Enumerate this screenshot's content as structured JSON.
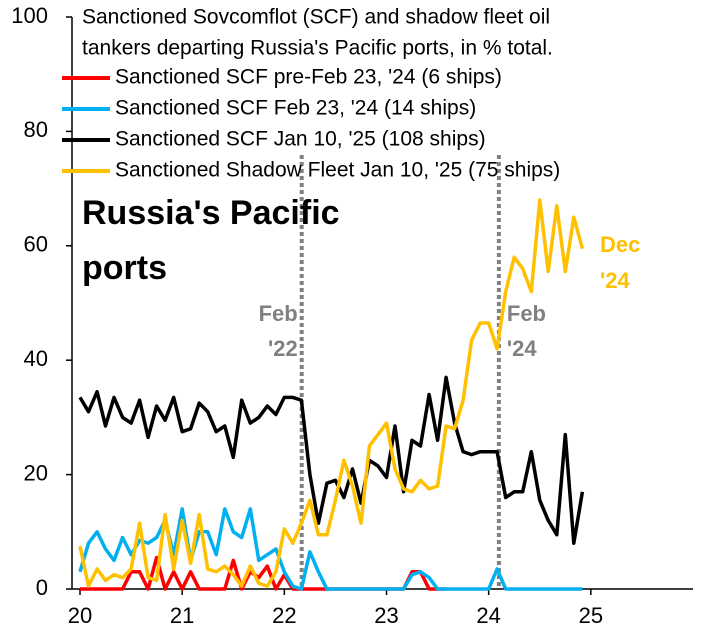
{
  "chart_data": {
    "type": "line",
    "title_lines": [
      "Sanctioned Sovcomflot (SCF) and shadow fleet oil",
      "tankers departing Russia's Pacific ports, in % total."
    ],
    "annotation_lines": [
      "Russia's Pacific",
      "ports"
    ],
    "events": [
      {
        "x": 22.17,
        "lines": [
          "Feb",
          "'22"
        ],
        "color": "#808080"
      },
      {
        "x": 24.1,
        "lines": [
          "Feb",
          "'24"
        ],
        "color": "#808080"
      }
    ],
    "end_label": {
      "lines": [
        "Dec",
        "'24"
      ],
      "color": "#ffc000"
    },
    "x": [
      20,
      20.083,
      20.167,
      20.25,
      20.333,
      20.417,
      20.5,
      20.583,
      20.667,
      20.75,
      20.833,
      20.917,
      21,
      21.083,
      21.167,
      21.25,
      21.333,
      21.417,
      21.5,
      21.583,
      21.667,
      21.75,
      21.833,
      21.917,
      22,
      22.083,
      22.167,
      22.25,
      22.333,
      22.417,
      22.5,
      22.583,
      22.667,
      22.75,
      22.833,
      22.917,
      23,
      23.083,
      23.167,
      23.25,
      23.333,
      23.417,
      23.5,
      23.583,
      23.667,
      23.75,
      23.833,
      23.917,
      24,
      24.083,
      24.167,
      24.25,
      24.333,
      24.417,
      24.5,
      24.583,
      24.667,
      24.75,
      24.833,
      24.917
    ],
    "series": [
      {
        "name": "Sanctioned SCF pre-Feb 23, '24 (6 ships)",
        "color": "#ff0000",
        "values": [
          0,
          0,
          0,
          0,
          0,
          0,
          3,
          3,
          0,
          5.5,
          0,
          3,
          0,
          3,
          0,
          0,
          0,
          0,
          5,
          0,
          3,
          2,
          4,
          0,
          2.5,
          0,
          0,
          0,
          0,
          0,
          0,
          0,
          0,
          0,
          0,
          0,
          0,
          0,
          0,
          3,
          3,
          0,
          0,
          0,
          null,
          null,
          null,
          null,
          null,
          null,
          null,
          null,
          null,
          null,
          null,
          null,
          null,
          null,
          null,
          null
        ]
      },
      {
        "name": "Sanctioned SCF Feb 23, '24 (14 ships)",
        "color": "#00b0f0",
        "values": [
          3,
          8,
          10,
          7,
          5,
          9,
          6,
          8.5,
          8,
          9,
          12,
          6,
          14,
          5,
          10,
          10,
          6,
          14,
          10,
          9,
          14,
          5,
          6,
          7,
          3,
          0.5,
          0,
          6.5,
          3,
          0,
          0,
          0,
          0,
          0,
          0,
          0,
          0,
          0,
          0,
          2.5,
          3,
          2,
          0,
          0,
          0,
          0,
          0,
          0,
          0,
          3.5,
          0,
          0,
          0,
          0,
          0,
          0,
          0,
          0,
          0,
          0
        ]
      },
      {
        "name": "Sanctioned SCF Jan 10, '25 (108 ships)",
        "color": "#000000",
        "values": [
          33.5,
          31,
          34.5,
          28.5,
          33.5,
          30,
          29,
          33,
          26.5,
          32,
          29.5,
          33.5,
          27.5,
          28,
          32.5,
          31,
          27.5,
          28.5,
          23,
          33,
          29,
          30,
          32,
          30.5,
          33.5,
          33.5,
          33,
          20,
          11.5,
          18.5,
          19,
          16,
          21,
          15,
          22.5,
          21.5,
          19.5,
          28.5,
          17,
          26,
          25,
          34,
          26,
          37,
          29,
          24,
          23.5,
          24,
          24,
          24,
          16,
          17,
          17,
          24,
          15.5,
          12,
          9.5,
          27,
          8,
          17
        ]
      },
      {
        "name": "Sanctioned Shadow Fleet Jan 10, '25 (75 ships)",
        "color": "#ffc000",
        "values": [
          7.5,
          0.5,
          3.5,
          1.5,
          2.5,
          2,
          3.5,
          11.5,
          2,
          1.5,
          13,
          3.5,
          12,
          4.5,
          13,
          3.5,
          3,
          4,
          2.5,
          0.5,
          4,
          1,
          0.5,
          3,
          10.5,
          8,
          11.5,
          15.5,
          9.5,
          9.5,
          15.5,
          22.5,
          18,
          11.5,
          25,
          27,
          29,
          21,
          17.5,
          17,
          19,
          17.5,
          18,
          28.5,
          28,
          33,
          43.5,
          46.5,
          46.5,
          42,
          52,
          58,
          56,
          52,
          68,
          55.5,
          67,
          55.5,
          65,
          59.5
        ]
      }
    ],
    "xlim": [
      20,
      26
    ],
    "xticks": [
      20,
      21,
      22,
      23,
      24,
      25
    ],
    "ylim": [
      0,
      100
    ],
    "yticks": [
      0,
      20,
      40,
      60,
      80,
      100
    ]
  }
}
